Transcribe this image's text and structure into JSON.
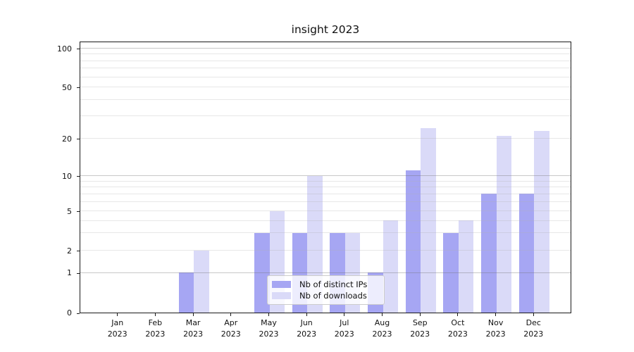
{
  "chart_data": {
    "type": "bar",
    "title": "insight 2023",
    "categories": [
      "Jan",
      "Feb",
      "Mar",
      "Apr",
      "May",
      "Jun",
      "Jul",
      "Aug",
      "Sep",
      "Oct",
      "Nov",
      "Dec"
    ],
    "year_label": "2023",
    "series": [
      {
        "name": "Nb of distinct IPs",
        "color": "#a6a6f3",
        "values": [
          0,
          0,
          1,
          0,
          3,
          3,
          3,
          1,
          11,
          3,
          7,
          7
        ]
      },
      {
        "name": "Nb of downloads",
        "color": "#dadaf8",
        "values": [
          0,
          0,
          2,
          0,
          5,
          10,
          3,
          4,
          24,
          4,
          21,
          23
        ]
      }
    ],
    "y_axis": {
      "scale": "log-like (symlog, linear below 1)",
      "labeled_ticks": [
        100,
        50,
        20,
        10,
        5,
        2,
        1,
        0
      ],
      "major_gridlines": [
        1,
        10,
        100
      ],
      "minor_gridlines": [
        2,
        3,
        4,
        5,
        6,
        7,
        8,
        9,
        20,
        30,
        40,
        50,
        60,
        70,
        80,
        90
      ],
      "range": [
        0,
        110
      ],
      "anchor_fractions": [
        [
          0,
          0
        ],
        [
          1,
          0.1466
        ],
        [
          2,
          0.2288
        ],
        [
          5,
          0.3743
        ],
        [
          10,
          0.5035
        ],
        [
          20,
          0.6405
        ],
        [
          50,
          0.8303
        ],
        [
          100,
          0.9727
        ]
      ]
    },
    "grid": "on",
    "legend_position": "lower center",
    "colors": {
      "background": "#ffffff",
      "spine": "#1a1a1a",
      "bar_distinct_ips": "#a6a6f3",
      "bar_downloads": "#dadaf8"
    }
  }
}
